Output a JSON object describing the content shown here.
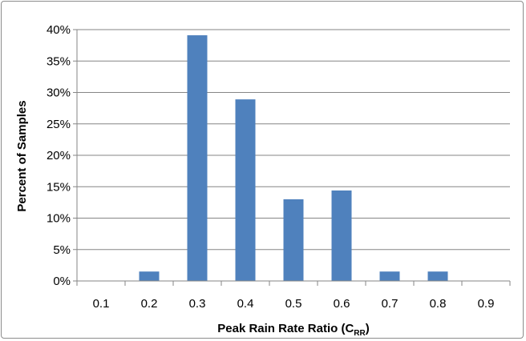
{
  "chart_data": {
    "type": "bar",
    "title": "",
    "xlabel": "Peak Rain Rate Ratio (C",
    "xlabel_subscript": "RR",
    "xlabel_suffix": ")",
    "ylabel": "Percent of Samples",
    "categories": [
      "0.1",
      "0.2",
      "0.3",
      "0.4",
      "0.5",
      "0.6",
      "0.7",
      "0.8",
      "0.9"
    ],
    "values": [
      0,
      1.5,
      39.1,
      28.9,
      13.0,
      14.4,
      1.5,
      1.5,
      0
    ],
    "ylim": [
      0,
      40
    ],
    "yticks": [
      0,
      5,
      10,
      15,
      20,
      25,
      30,
      35,
      40
    ],
    "ytick_format": "percent",
    "grid": true,
    "bar_color": "#4f81bd",
    "grid_color": "#868686"
  }
}
